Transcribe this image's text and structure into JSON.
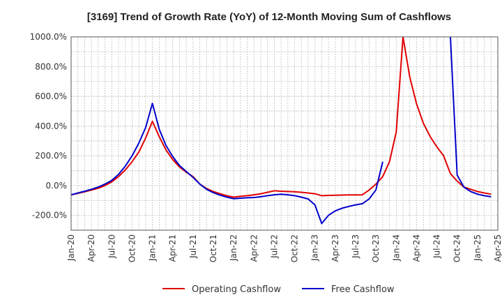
{
  "chart_data": {
    "type": "line",
    "title": "[3169]  Trend of Growth Rate (YoY) of 12-Month Moving Sum of Cashflows",
    "xlabel": "",
    "ylabel": "",
    "ylim": [
      -300,
      1000
    ],
    "y_ticks": [
      {
        "value": 1000,
        "label": "1000.0%"
      },
      {
        "value": 800,
        "label": "800.0%"
      },
      {
        "value": 600,
        "label": "600.0%"
      },
      {
        "value": 400,
        "label": "400.0%"
      },
      {
        "value": 200,
        "label": "200.0%"
      },
      {
        "value": 0,
        "label": "0.0%"
      },
      {
        "value": -200,
        "label": "-200.0%"
      }
    ],
    "x_ticks": [
      "Jan-20",
      "Apr-20",
      "Jul-20",
      "Oct-20",
      "Jan-21",
      "Apr-21",
      "Jul-21",
      "Oct-21",
      "Jan-22",
      "Apr-22",
      "Jul-22",
      "Oct-22",
      "Jan-23",
      "Apr-23",
      "Jul-23",
      "Oct-23",
      "Jan-24",
      "Apr-24",
      "Jul-24",
      "Oct-24",
      "Jan-25",
      "Apr-25"
    ],
    "grid": true,
    "legend_position": "bottom",
    "series": [
      {
        "name": "Operating Cashflow",
        "color": "#e00000",
        "points": [
          [
            0,
            -62
          ],
          [
            1,
            -52
          ],
          [
            2,
            -42
          ],
          [
            3,
            -30
          ],
          [
            4,
            -18
          ],
          [
            5,
            0
          ],
          [
            6,
            25
          ],
          [
            7,
            60
          ],
          [
            8,
            105
          ],
          [
            9,
            160
          ],
          [
            10,
            225
          ],
          [
            11,
            320
          ],
          [
            12,
            432
          ],
          [
            13,
            330
          ],
          [
            14,
            240
          ],
          [
            15,
            175
          ],
          [
            16,
            125
          ],
          [
            17,
            90
          ],
          [
            18,
            60
          ],
          [
            19,
            10
          ],
          [
            20,
            -20
          ],
          [
            21,
            -40
          ],
          [
            22,
            -55
          ],
          [
            23,
            -68
          ],
          [
            24,
            -78
          ],
          [
            25,
            -72
          ],
          [
            26,
            -68
          ],
          [
            27,
            -62
          ],
          [
            28,
            -55
          ],
          [
            29,
            -45
          ],
          [
            30,
            -35
          ],
          [
            31,
            -38
          ],
          [
            32,
            -40
          ],
          [
            33,
            -42
          ],
          [
            34,
            -45
          ],
          [
            35,
            -50
          ],
          [
            36,
            -55
          ],
          [
            37,
            -68
          ],
          [
            38,
            -66
          ],
          [
            39,
            -65
          ],
          [
            40,
            -64
          ],
          [
            41,
            -63
          ],
          [
            42,
            -63
          ],
          [
            43,
            -62
          ],
          [
            44,
            -30
          ],
          [
            45,
            10
          ],
          [
            46,
            60
          ],
          [
            47,
            160
          ],
          [
            48,
            360
          ],
          [
            49,
            1000
          ],
          [
            50,
            730
          ],
          [
            51,
            550
          ],
          [
            52,
            420
          ],
          [
            53,
            330
          ],
          [
            54,
            260
          ],
          [
            55,
            200
          ],
          [
            56,
            80
          ],
          [
            57,
            30
          ],
          [
            58,
            -10
          ],
          [
            59,
            -25
          ],
          [
            60,
            -40
          ],
          [
            61,
            -50
          ],
          [
            62,
            -58
          ]
        ]
      },
      {
        "name": "Free Cashflow",
        "color": "#0000cc",
        "segments": [
          [
            [
              0,
              -62
            ],
            [
              1,
              -50
            ],
            [
              2,
              -38
            ],
            [
              3,
              -25
            ],
            [
              4,
              -10
            ],
            [
              5,
              10
            ],
            [
              6,
              35
            ],
            [
              7,
              75
            ],
            [
              8,
              130
            ],
            [
              9,
              200
            ],
            [
              10,
              285
            ],
            [
              11,
              390
            ],
            [
              12,
              553
            ],
            [
              13,
              380
            ],
            [
              14,
              270
            ],
            [
              15,
              195
            ],
            [
              16,
              135
            ],
            [
              17,
              95
            ],
            [
              18,
              55
            ],
            [
              19,
              10
            ],
            [
              20,
              -25
            ],
            [
              21,
              -48
            ],
            [
              22,
              -65
            ],
            [
              23,
              -78
            ],
            [
              24,
              -88
            ],
            [
              25,
              -85
            ],
            [
              26,
              -82
            ],
            [
              27,
              -80
            ],
            [
              28,
              -75
            ],
            [
              29,
              -68
            ],
            [
              30,
              -62
            ],
            [
              31,
              -58
            ],
            [
              32,
              -62
            ],
            [
              33,
              -68
            ],
            [
              34,
              -78
            ],
            [
              35,
              -90
            ],
            [
              36,
              -130
            ],
            [
              37,
              -255
            ],
            [
              38,
              -200
            ],
            [
              39,
              -170
            ],
            [
              40,
              -152
            ],
            [
              41,
              -140
            ],
            [
              42,
              -130
            ],
            [
              43,
              -122
            ],
            [
              44,
              -90
            ],
            [
              45,
              -30
            ],
            [
              46,
              160
            ]
          ],
          [
            [
              55,
              1030
            ],
            [
              56,
              1000
            ],
            [
              57,
              70
            ],
            [
              58,
              -10
            ],
            [
              59,
              -40
            ],
            [
              60,
              -58
            ],
            [
              61,
              -68
            ],
            [
              62,
              -75
            ]
          ]
        ]
      }
    ]
  }
}
